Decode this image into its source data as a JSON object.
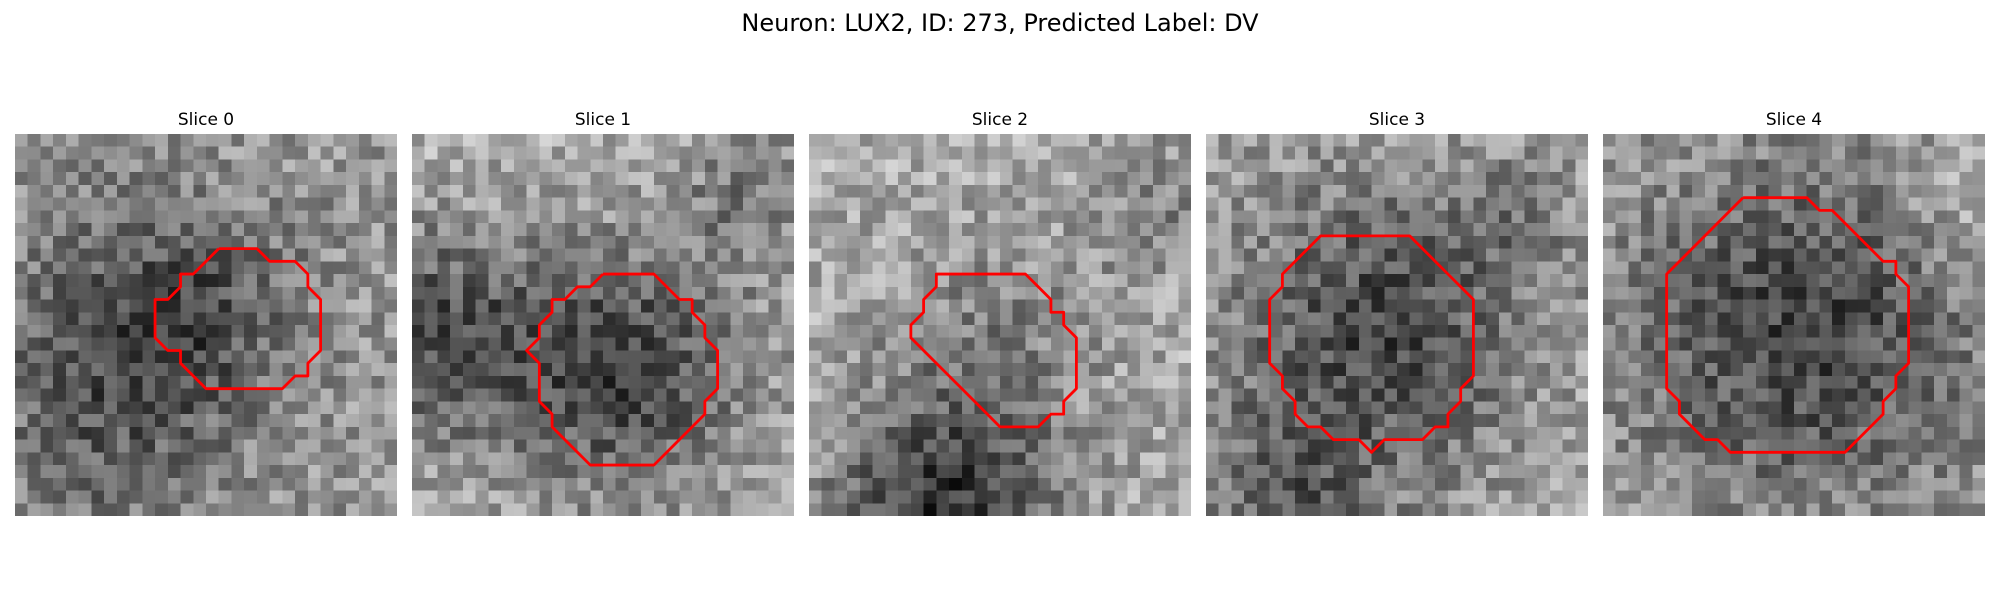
{
  "figure": {
    "title": "Neuron: LUX2, ID: 273, Predicted Label: DV"
  },
  "colors": {
    "contour": "#ff0000",
    "background": "#ffffff"
  },
  "grid_size": 30,
  "slices": [
    {
      "label": "Slice 0",
      "contour_points": [
        [
          16,
          9
        ],
        [
          19,
          9
        ],
        [
          20,
          10
        ],
        [
          22,
          10
        ],
        [
          23,
          11
        ],
        [
          23,
          12
        ],
        [
          24,
          13
        ],
        [
          24,
          17
        ],
        [
          23,
          18
        ],
        [
          23,
          19
        ],
        [
          22,
          19
        ],
        [
          21,
          20
        ],
        [
          15,
          20
        ],
        [
          14,
          19
        ],
        [
          13,
          18
        ],
        [
          13,
          17
        ],
        [
          12,
          17
        ],
        [
          11,
          16
        ],
        [
          11,
          13
        ],
        [
          12,
          13
        ],
        [
          13,
          12
        ],
        [
          13,
          11
        ],
        [
          14,
          11
        ],
        [
          15,
          10
        ],
        [
          16,
          9
        ]
      ]
    },
    {
      "label": "Slice 1",
      "contour_points": [
        [
          15,
          11
        ],
        [
          19,
          11
        ],
        [
          21,
          13
        ],
        [
          22,
          13
        ],
        [
          22,
          14
        ],
        [
          23,
          15
        ],
        [
          23,
          16
        ],
        [
          24,
          17
        ],
        [
          24,
          20
        ],
        [
          23,
          21
        ],
        [
          23,
          22
        ],
        [
          22,
          23
        ],
        [
          21,
          24
        ],
        [
          20,
          25
        ],
        [
          19,
          26
        ],
        [
          14,
          26
        ],
        [
          13,
          25
        ],
        [
          12,
          24
        ],
        [
          11,
          23
        ],
        [
          11,
          22
        ],
        [
          10,
          21
        ],
        [
          10,
          19
        ],
        [
          10,
          18
        ],
        [
          9,
          17
        ],
        [
          10,
          16
        ],
        [
          10,
          15
        ],
        [
          11,
          14
        ],
        [
          11,
          13
        ],
        [
          12,
          13
        ],
        [
          13,
          12
        ],
        [
          14,
          12
        ],
        [
          15,
          11
        ]
      ]
    },
    {
      "label": "Slice 2",
      "contour_points": [
        [
          11,
          11
        ],
        [
          17,
          11
        ],
        [
          18,
          12
        ],
        [
          19,
          13
        ],
        [
          19,
          14
        ],
        [
          20,
          14
        ],
        [
          20,
          15
        ],
        [
          21,
          16
        ],
        [
          21,
          20
        ],
        [
          20,
          21
        ],
        [
          20,
          22
        ],
        [
          19,
          22
        ],
        [
          18,
          23
        ],
        [
          17,
          23
        ],
        [
          16,
          23
        ],
        [
          15,
          23
        ],
        [
          14,
          22
        ],
        [
          13,
          21
        ],
        [
          12,
          20
        ],
        [
          11,
          19
        ],
        [
          10,
          18
        ],
        [
          9,
          17
        ],
        [
          8,
          16
        ],
        [
          8,
          15
        ],
        [
          9,
          14
        ],
        [
          9,
          13
        ],
        [
          10,
          12
        ],
        [
          10,
          11
        ],
        [
          11,
          11
        ]
      ]
    },
    {
      "label": "Slice 3",
      "contour_points": [
        [
          10,
          8
        ],
        [
          16,
          8
        ],
        [
          17,
          9
        ],
        [
          18,
          10
        ],
        [
          19,
          11
        ],
        [
          20,
          12
        ],
        [
          21,
          13
        ],
        [
          21,
          19
        ],
        [
          20,
          20
        ],
        [
          20,
          21
        ],
        [
          19,
          22
        ],
        [
          19,
          23
        ],
        [
          18,
          23
        ],
        [
          17,
          24
        ],
        [
          16,
          24
        ],
        [
          15,
          24
        ],
        [
          14,
          24
        ],
        [
          13,
          25
        ],
        [
          12,
          24
        ],
        [
          11,
          24
        ],
        [
          10,
          24
        ],
        [
          9,
          23
        ],
        [
          8,
          23
        ],
        [
          7,
          22
        ],
        [
          7,
          21
        ],
        [
          6,
          20
        ],
        [
          6,
          19
        ],
        [
          5,
          18
        ],
        [
          5,
          13
        ],
        [
          6,
          12
        ],
        [
          6,
          11
        ],
        [
          7,
          10
        ],
        [
          8,
          9
        ],
        [
          9,
          8
        ],
        [
          10,
          8
        ]
      ]
    },
    {
      "label": "Slice 4",
      "contour_points": [
        [
          11,
          5
        ],
        [
          16,
          5
        ],
        [
          17,
          6
        ],
        [
          18,
          6
        ],
        [
          19,
          7
        ],
        [
          20,
          8
        ],
        [
          21,
          9
        ],
        [
          22,
          10
        ],
        [
          23,
          10
        ],
        [
          23,
          11
        ],
        [
          24,
          12
        ],
        [
          24,
          18
        ],
        [
          23,
          19
        ],
        [
          23,
          20
        ],
        [
          22,
          21
        ],
        [
          22,
          22
        ],
        [
          21,
          23
        ],
        [
          20,
          24
        ],
        [
          19,
          25
        ],
        [
          10,
          25
        ],
        [
          9,
          24
        ],
        [
          8,
          24
        ],
        [
          7,
          23
        ],
        [
          6,
          22
        ],
        [
          6,
          21
        ],
        [
          5,
          20
        ],
        [
          5,
          11
        ],
        [
          6,
          10
        ],
        [
          7,
          9
        ],
        [
          8,
          8
        ],
        [
          9,
          7
        ],
        [
          10,
          6
        ],
        [
          11,
          5
        ]
      ]
    }
  ]
}
